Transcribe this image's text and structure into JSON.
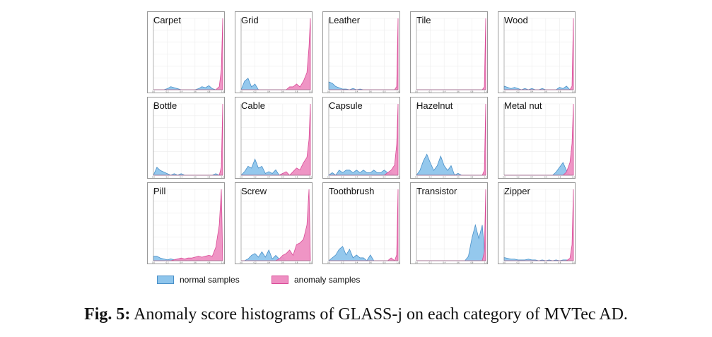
{
  "caption": {
    "label": "Fig. 5:",
    "text": "Anomaly score histograms of GLASS-j on each category of MVTec AD."
  },
  "legend": {
    "normal": "normal samples",
    "anomaly": "anomaly samples"
  },
  "colors": {
    "normal_fill": "#8ec5ec",
    "normal_line": "#4a90c8",
    "anomaly_fill": "#ee8fc2",
    "anomaly_line": "#d94a97",
    "frame": "#999999",
    "grid": "#ececec"
  },
  "chart_data": {
    "type": "area",
    "xlim": [
      0.0,
      1.0
    ],
    "x_ticks": [
      "0.0",
      "0.2",
      "0.4",
      "0.6",
      "0.8",
      "1.0"
    ],
    "x": [
      0.0,
      0.05,
      0.1,
      0.15,
      0.2,
      0.25,
      0.3,
      0.35,
      0.4,
      0.45,
      0.5,
      0.55,
      0.6,
      0.65,
      0.7,
      0.75,
      0.8,
      0.85,
      0.9,
      0.95,
      0.98,
      1.0
    ],
    "panels": [
      {
        "name": "Carpet",
        "ylim": [
          0,
          70
        ],
        "normal": [
          0,
          0,
          0,
          0,
          1,
          3,
          2,
          1,
          0,
          0,
          0,
          0,
          0,
          1,
          3,
          2,
          4,
          1,
          0,
          0,
          0,
          0
        ],
        "anomaly": [
          0,
          0,
          0,
          0,
          0,
          0,
          0,
          0,
          0,
          0,
          0,
          0,
          0,
          0,
          0,
          0,
          0,
          0,
          0,
          3,
          20,
          70
        ]
      },
      {
        "name": "Grid",
        "ylim": [
          0,
          25
        ],
        "normal": [
          0,
          3,
          4,
          1,
          2,
          0,
          0,
          0,
          0,
          0,
          0,
          0,
          0,
          0,
          0,
          0,
          0,
          0,
          0,
          0,
          0,
          0
        ],
        "anomaly": [
          0,
          0,
          0,
          0,
          0,
          0,
          0,
          0,
          0,
          0,
          0,
          0,
          0,
          0,
          1,
          1,
          2,
          1,
          3,
          6,
          15,
          25
        ]
      },
      {
        "name": "Leather",
        "ylim": [
          0,
          110
        ],
        "normal": [
          12,
          10,
          5,
          3,
          1,
          1,
          0,
          2,
          0,
          1,
          0,
          0,
          0,
          0,
          0,
          0,
          0,
          0,
          0,
          0,
          0,
          0
        ],
        "anomaly": [
          0,
          0,
          0,
          0,
          0,
          0,
          0,
          0,
          0,
          0,
          0,
          0,
          0,
          0,
          0,
          0,
          0,
          0,
          0,
          0,
          5,
          110
        ]
      },
      {
        "name": "Tile",
        "ylim": [
          0,
          25
        ],
        "normal": [
          0,
          0,
          0,
          0,
          0,
          0,
          0,
          0,
          0,
          0,
          0,
          0,
          0,
          0,
          0,
          0,
          0,
          0,
          0,
          0,
          0,
          0
        ],
        "anomaly": [
          0,
          0,
          0,
          0,
          0,
          0,
          0,
          0,
          0,
          0,
          0,
          0,
          0,
          0,
          0,
          0,
          0,
          0,
          0,
          0,
          1,
          25
        ]
      },
      {
        "name": "Wood",
        "ylim": [
          0,
          60
        ],
        "normal": [
          3,
          2,
          1,
          2,
          1,
          0,
          1,
          0,
          1,
          0,
          0,
          1,
          0,
          0,
          0,
          0,
          2,
          1,
          3,
          0,
          0,
          0
        ],
        "anomaly": [
          0,
          0,
          0,
          0,
          0,
          0,
          0,
          0,
          0,
          0,
          0,
          0,
          0,
          0,
          0,
          0,
          0,
          0,
          0,
          0,
          3,
          60
        ]
      },
      {
        "name": "Bottle",
        "ylim": [
          0,
          45
        ],
        "normal": [
          0,
          5,
          3,
          2,
          1,
          0,
          1,
          0,
          1,
          0,
          0,
          0,
          0,
          0,
          0,
          0,
          0,
          0,
          1,
          0,
          0,
          0
        ],
        "anomaly": [
          0,
          0,
          0,
          0,
          0,
          0,
          0,
          0,
          0,
          0,
          0,
          0,
          0,
          0,
          0,
          0,
          0,
          0,
          0,
          0,
          5,
          45
        ]
      },
      {
        "name": "Cable",
        "ylim": [
          0,
          40
        ],
        "normal": [
          0,
          2,
          5,
          4,
          9,
          4,
          5,
          1,
          2,
          1,
          3,
          0,
          1,
          0,
          0,
          0,
          0,
          0,
          0,
          0,
          0,
          0
        ],
        "anomaly": [
          0,
          0,
          0,
          0,
          0,
          0,
          0,
          0,
          0,
          0,
          0,
          0,
          1,
          2,
          0,
          2,
          4,
          3,
          7,
          10,
          20,
          40
        ]
      },
      {
        "name": "Capsule",
        "ylim": [
          0,
          28
        ],
        "normal": [
          0,
          1,
          0,
          2,
          1,
          2,
          2,
          1,
          2,
          1,
          2,
          1,
          1,
          2,
          1,
          1,
          2,
          1,
          1,
          0,
          0,
          0
        ],
        "anomaly": [
          0,
          0,
          0,
          0,
          0,
          0,
          0,
          0,
          0,
          0,
          0,
          0,
          0,
          0,
          0,
          0,
          0,
          1,
          2,
          4,
          12,
          28
        ]
      },
      {
        "name": "Hazelnut",
        "ylim": [
          0,
          75
        ],
        "normal": [
          0,
          5,
          15,
          22,
          13,
          5,
          10,
          20,
          10,
          5,
          10,
          0,
          2,
          0,
          0,
          0,
          0,
          0,
          0,
          0,
          0,
          0
        ],
        "anomaly": [
          0,
          0,
          0,
          0,
          0,
          0,
          0,
          0,
          0,
          0,
          0,
          0,
          0,
          0,
          0,
          0,
          0,
          0,
          0,
          0,
          5,
          75
        ]
      },
      {
        "name": "Metal nut",
        "ylim": [
          0,
          45
        ],
        "normal": [
          0,
          0,
          0,
          0,
          0,
          0,
          0,
          0,
          0,
          0,
          0,
          0,
          0,
          0,
          0,
          2,
          5,
          8,
          3,
          0,
          0,
          0
        ],
        "anomaly": [
          0,
          0,
          0,
          0,
          0,
          0,
          0,
          0,
          0,
          0,
          0,
          0,
          0,
          0,
          0,
          0,
          0,
          0,
          2,
          8,
          20,
          45
        ]
      },
      {
        "name": "Pill",
        "ylim": [
          0,
          80
        ],
        "normal": [
          5,
          5,
          3,
          2,
          1,
          2,
          1,
          2,
          1,
          1,
          0,
          1,
          0,
          1,
          0,
          0,
          0,
          0,
          0,
          0,
          0,
          0
        ],
        "anomaly": [
          0,
          0,
          0,
          0,
          0,
          0,
          1,
          2,
          3,
          2,
          3,
          3,
          4,
          5,
          4,
          5,
          6,
          5,
          15,
          40,
          80,
          0
        ]
      },
      {
        "name": "Screw",
        "ylim": [
          0,
          40
        ],
        "normal": [
          0,
          0,
          1,
          3,
          4,
          2,
          5,
          2,
          6,
          1,
          3,
          1,
          2,
          0,
          0,
          0,
          0,
          0,
          0,
          0,
          0,
          0
        ],
        "anomaly": [
          0,
          0,
          0,
          0,
          0,
          0,
          0,
          0,
          0,
          0,
          0,
          1,
          3,
          4,
          6,
          3,
          9,
          10,
          12,
          20,
          40,
          0
        ]
      },
      {
        "name": "Toothbrush",
        "ylim": [
          0,
          25
        ],
        "normal": [
          0,
          1,
          2,
          4,
          5,
          2,
          4,
          1,
          2,
          1,
          1,
          0,
          2,
          0,
          0,
          0,
          0,
          0,
          0,
          0,
          0,
          0
        ],
        "anomaly": [
          0,
          0,
          0,
          0,
          0,
          0,
          0,
          0,
          0,
          0,
          0,
          0,
          0,
          0,
          0,
          0,
          0,
          0,
          1,
          0,
          2,
          25
        ]
      },
      {
        "name": "Transistor",
        "ylim": [
          0,
          16
        ],
        "normal": [
          0,
          0,
          0,
          0,
          0,
          0,
          0,
          0,
          0,
          0,
          0,
          0,
          0,
          0,
          0,
          1,
          5,
          8,
          5,
          8,
          2,
          0
        ],
        "anomaly": [
          0,
          0,
          0,
          0,
          0,
          0,
          0,
          0,
          0,
          0,
          0,
          0,
          0,
          0,
          0,
          0,
          0,
          0,
          0,
          0,
          2,
          16
        ]
      },
      {
        "name": "Zipper",
        "ylim": [
          0,
          90
        ],
        "normal": [
          4,
          3,
          2,
          2,
          1,
          1,
          1,
          2,
          1,
          1,
          0,
          1,
          0,
          1,
          0,
          1,
          0,
          1,
          1,
          0,
          0,
          0
        ],
        "anomaly": [
          0,
          0,
          0,
          0,
          0,
          0,
          0,
          0,
          0,
          0,
          0,
          0,
          0,
          0,
          0,
          0,
          0,
          0,
          0,
          3,
          20,
          90
        ]
      }
    ]
  }
}
